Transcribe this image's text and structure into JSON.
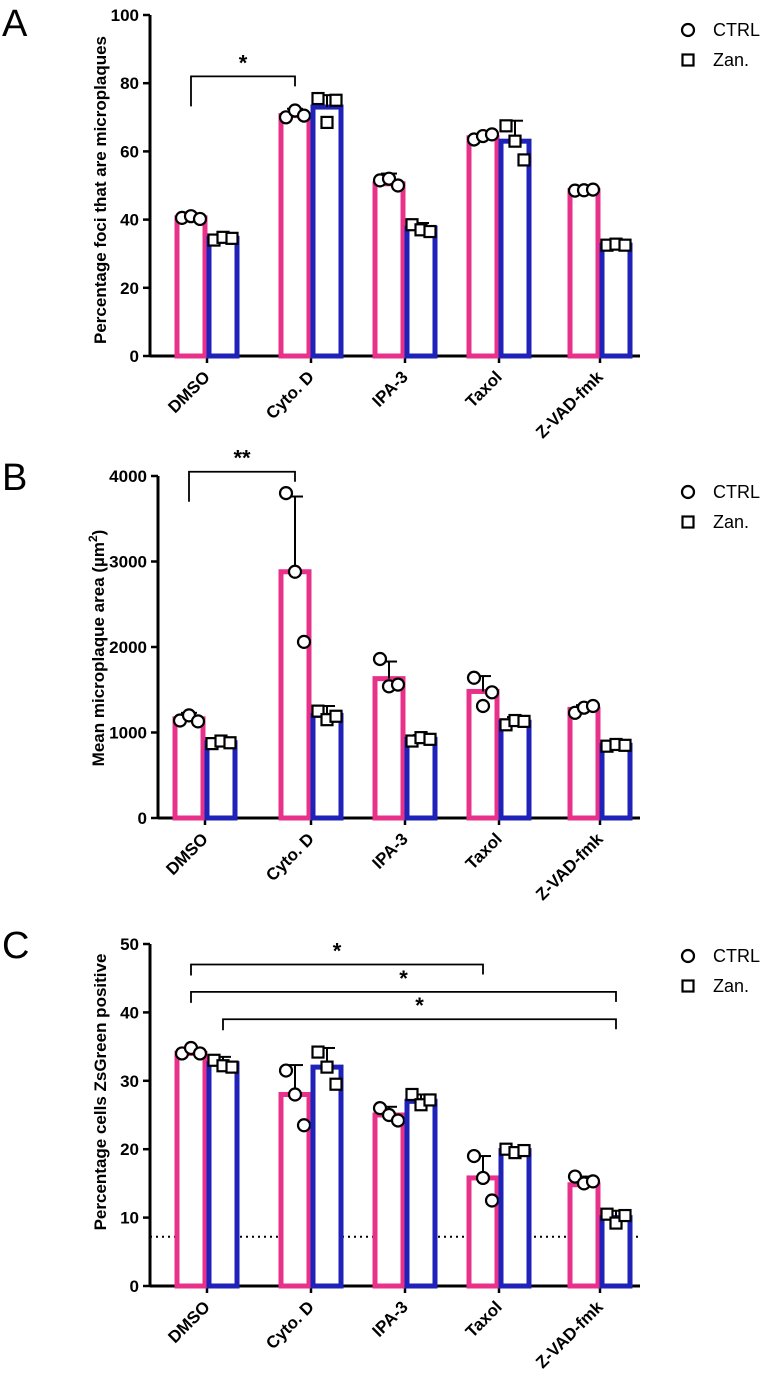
{
  "series_style": {
    "ctrl_color": "#e8318a",
    "zan_color": "#1f22b8"
  },
  "chart_data": [
    {
      "panel": "A",
      "type": "bar",
      "ylabel": "Percentage foci that are microplaques",
      "ylim": [
        0,
        100
      ],
      "yticks": [
        0,
        20,
        40,
        60,
        80,
        100
      ],
      "categories": [
        "DMSO",
        "Cyto. D",
        "IPA-3",
        "Taxol",
        "Z-VAD-fmk"
      ],
      "legend": [
        "CTRL",
        "Zan."
      ],
      "series": [
        {
          "name": "CTRL",
          "values": [
            40.5,
            70.5,
            50.5,
            64,
            48.5
          ],
          "errors": [
            1,
            2,
            3,
            1,
            0.7
          ],
          "points": [
            [
              40.5,
              41,
              40.2
            ],
            [
              70,
              72,
              70.5
            ],
            [
              51.5,
              52,
              50
            ],
            [
              63.5,
              64.5,
              65
            ],
            [
              48.5,
              48.6,
              48.8
            ]
          ]
        },
        {
          "name": "Zan.",
          "values": [
            34.5,
            73,
            37.5,
            63,
            32.5
          ],
          "errors": [
            1,
            3.5,
            1.5,
            6,
            0.7
          ],
          "points": [
            [
              34,
              34.8,
              34.5
            ],
            [
              75.5,
              68.5,
              75
            ],
            [
              38.5,
              37,
              36.5
            ],
            [
              67.5,
              63,
              57.5
            ],
            [
              32.5,
              32.8,
              32.5
            ]
          ]
        }
      ],
      "significance": [
        {
          "from": 0,
          "to": 1,
          "label": "*",
          "level": 82
        }
      ]
    },
    {
      "panel": "B",
      "type": "bar",
      "ylabel": "Mean microplaque area (µm",
      "ylabel_sup": "2",
      "ylabel_end": ")",
      "ylim": [
        0,
        4000
      ],
      "yticks": [
        0,
        1000,
        2000,
        3000,
        4000
      ],
      "categories": [
        "DMSO",
        "Cyto. D",
        "IPA-3",
        "Taxol",
        "Z-VAD-fmk"
      ],
      "legend": [
        "CTRL",
        "Zan."
      ],
      "series": [
        {
          "name": "CTRL",
          "values": [
            1160,
            2880,
            1630,
            1480,
            1270
          ],
          "errors": [
            70,
            880,
            200,
            180,
            50
          ],
          "points": [
            [
              1140,
              1200,
              1130
            ],
            [
              3800,
              2880,
              2060
            ],
            [
              1860,
              1540,
              1560
            ],
            [
              1640,
              1310,
              1470
            ],
            [
              1230,
              1290,
              1310
            ]
          ]
        },
        {
          "name": "Zan.",
          "values": [
            880,
            1200,
            920,
            1120,
            850
          ],
          "errors": [
            40,
            110,
            50,
            60,
            30
          ],
          "points": [
            [
              870,
              900,
              880
            ],
            [
              1250,
              1150,
              1190
            ],
            [
              900,
              940,
              920
            ],
            [
              1090,
              1140,
              1130
            ],
            [
              840,
              860,
              850
            ]
          ]
        }
      ],
      "significance": [
        {
          "from": 0,
          "to": 1,
          "label": "**",
          "level": 4050
        }
      ]
    },
    {
      "panel": "C",
      "type": "bar",
      "ylabel": "Percentage cells ZsGreen positive",
      "ylim": [
        0,
        50
      ],
      "yticks": [
        0,
        10,
        20,
        30,
        40,
        50
      ],
      "categories": [
        "DMSO",
        "Cyto. D",
        "IPA-3",
        "Taxol",
        "Z-VAD-fmk"
      ],
      "legend": [
        "CTRL",
        "Zan."
      ],
      "threshold": 7.2,
      "series": [
        {
          "name": "CTRL",
          "values": [
            34,
            28,
            25,
            15.8,
            14.8
          ],
          "errors": [
            0.7,
            4.3,
            1.2,
            3.2,
            1.2
          ],
          "points": [
            [
              34,
              34.8,
              34
            ],
            [
              31.5,
              28,
              23.5
            ],
            [
              26,
              25,
              24.2
            ],
            [
              19,
              15.8,
              12.5
            ],
            [
              16,
              15,
              15.3
            ]
          ]
        },
        {
          "name": "Zan.",
          "values": [
            32.5,
            32,
            27,
            19.8,
            10
          ],
          "errors": [
            1,
            2.8,
            1,
            0.5,
            1
          ],
          "points": [
            [
              33,
              32.2,
              32
            ],
            [
              34.2,
              32,
              29.5
            ],
            [
              28,
              26.5,
              27.2
            ],
            [
              20,
              19.5,
              19.8
            ],
            [
              10.5,
              9.2,
              10.3
            ]
          ]
        }
      ],
      "significance": [
        {
          "from": 0,
          "to": 3,
          "label": "*",
          "level": 47,
          "anchor_series": 0
        },
        {
          "from": 0,
          "to": 4,
          "label": "*",
          "level": 43,
          "anchor_series": 0
        },
        {
          "from": 0,
          "to": 4,
          "label": "*",
          "level": 39,
          "anchor_series": 1
        }
      ]
    }
  ]
}
